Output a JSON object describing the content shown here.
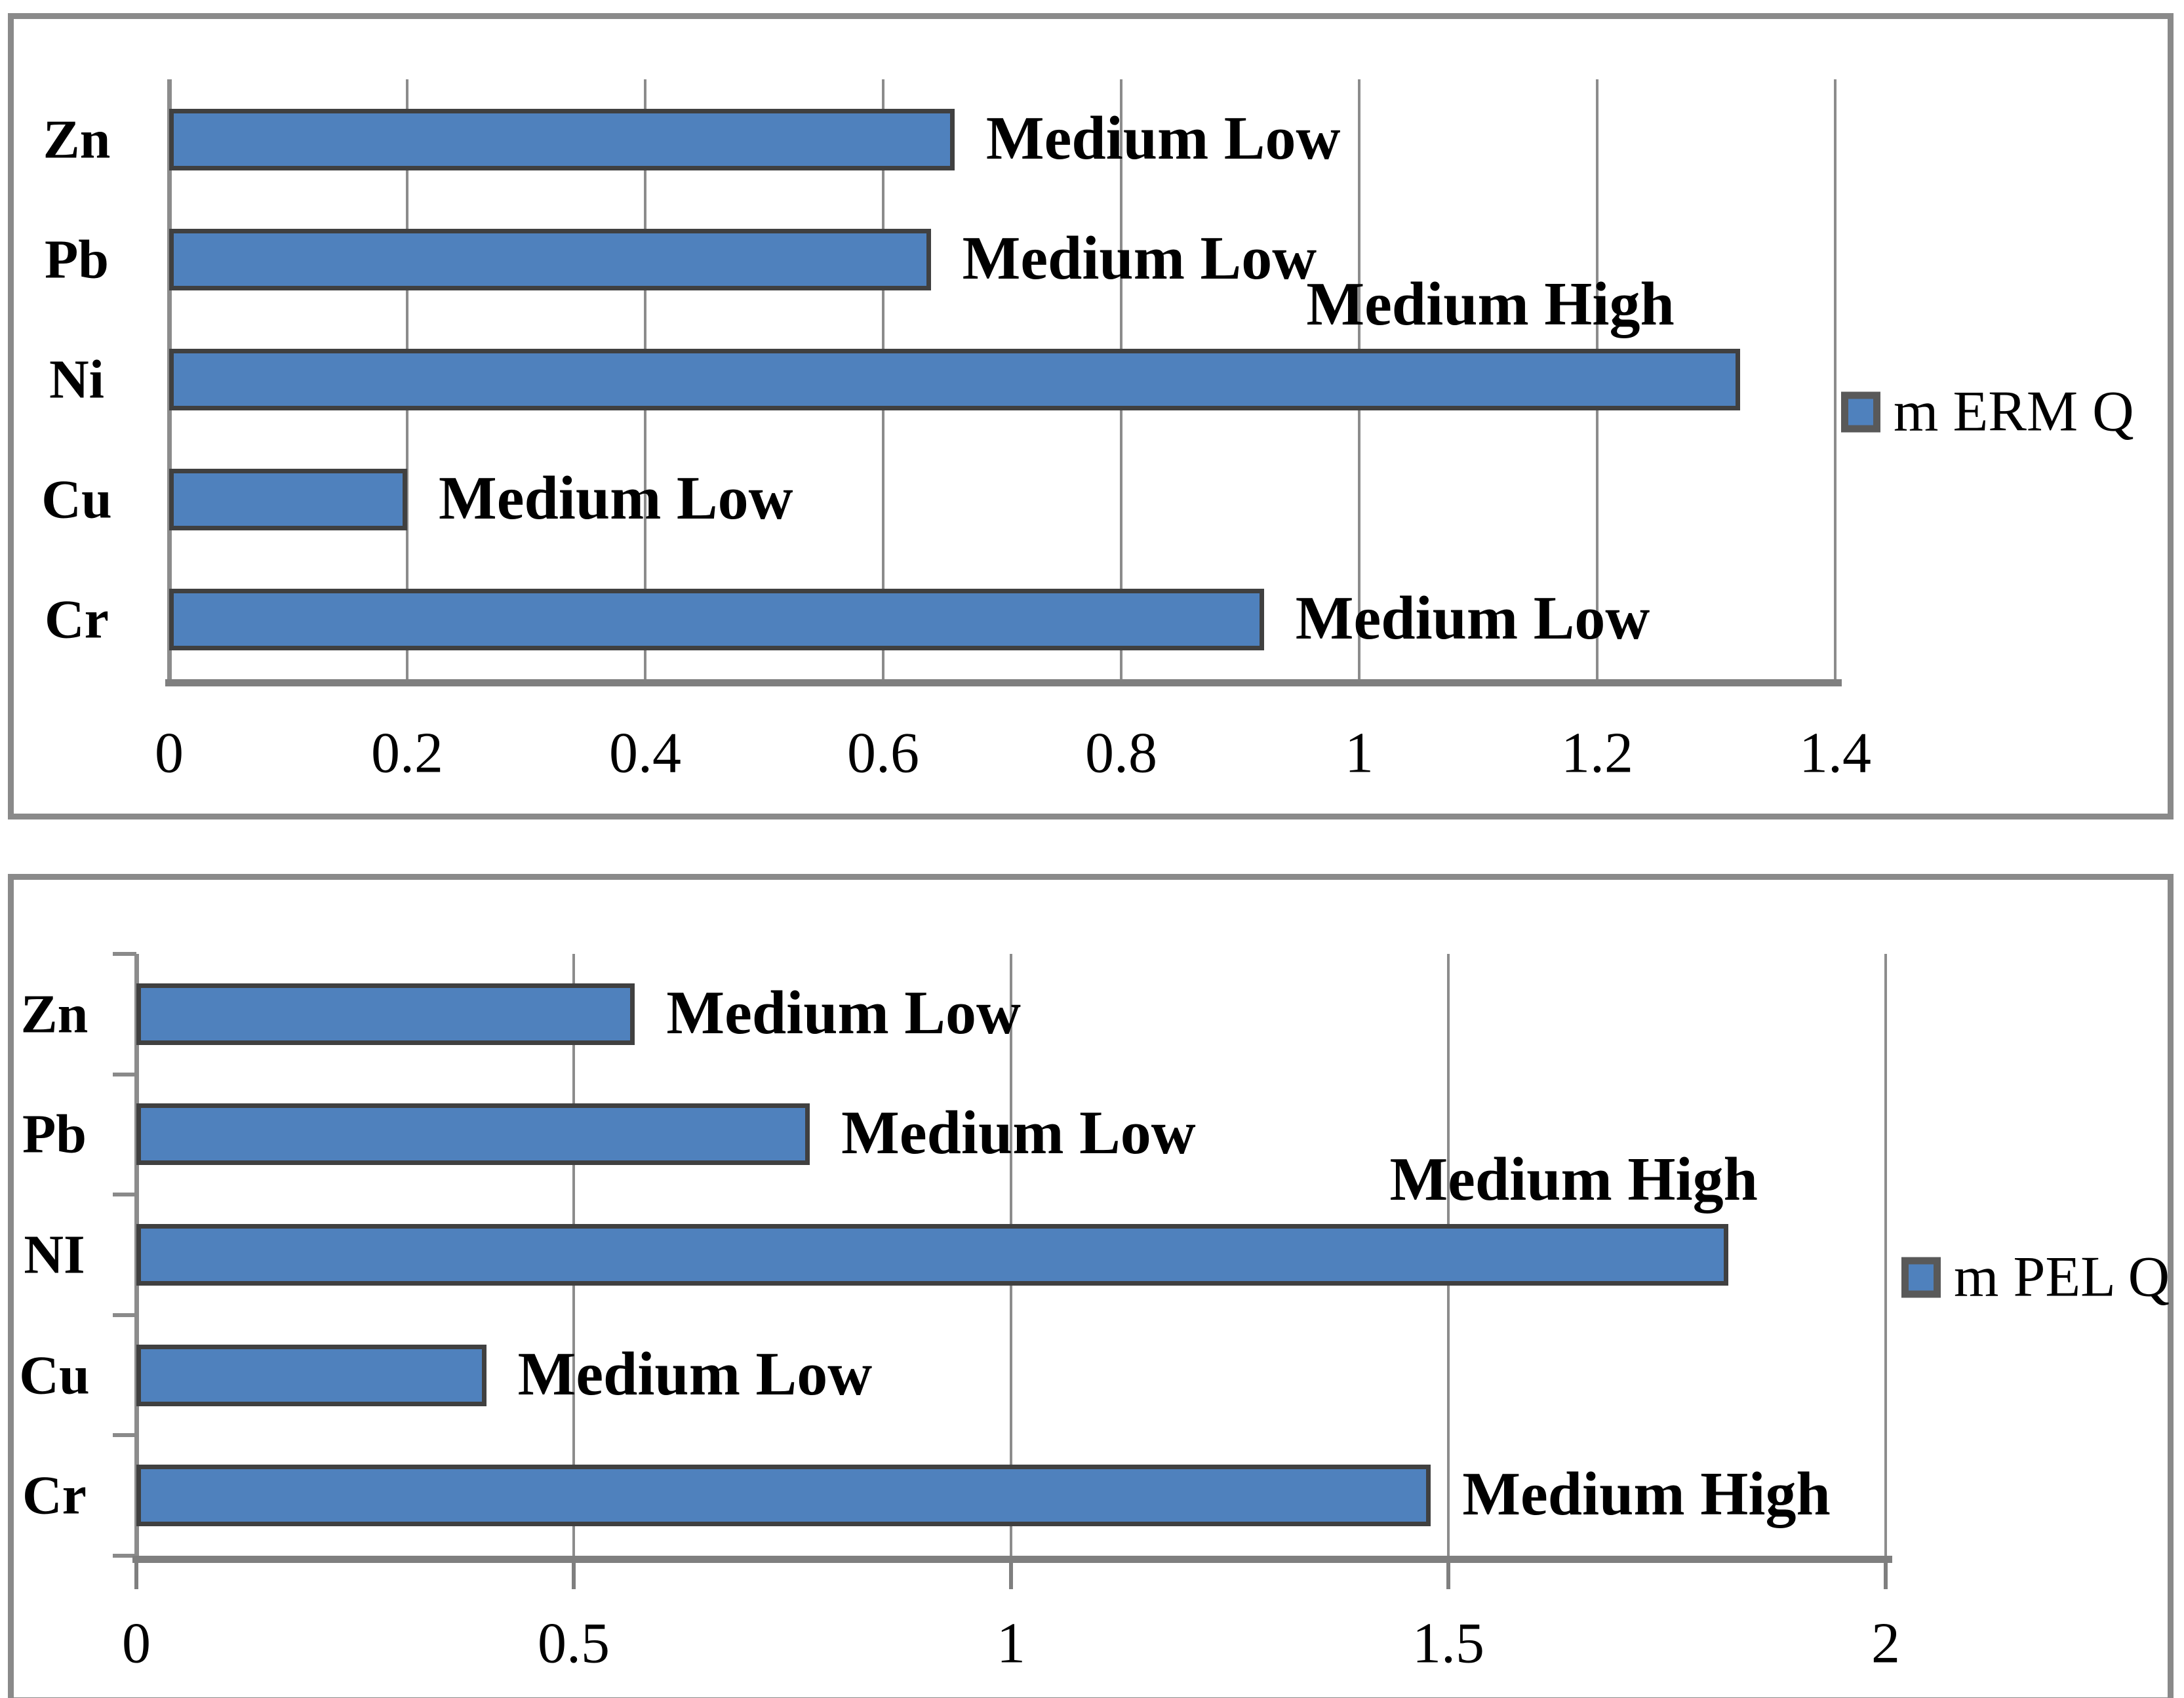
{
  "colors": {
    "background": "#FFFFFF",
    "bar_fill": "#4F81BD",
    "bar_border": "#404040",
    "gridline": "#8C8C8C",
    "axis_line": "#7F7F7F",
    "frame_border": "#8A8A8A",
    "legend_swatch_border": "#595959",
    "text": "#000000"
  },
  "chart_data": [
    {
      "type": "bar",
      "orientation": "horizontal",
      "series_name": "m ERM Q",
      "categories": [
        "Zn",
        "Pb",
        "Ni",
        "Cu",
        "Cr"
      ],
      "values": [
        0.66,
        0.64,
        1.32,
        0.2,
        0.92
      ],
      "data_labels": [
        "Medium Low",
        "Medium Low",
        "Medium High",
        "Medium Low",
        "Medium Low"
      ],
      "data_label_position": [
        "right",
        "right",
        "above",
        "right",
        "right"
      ],
      "xlim": [
        0,
        1.4
      ],
      "xticks": [
        0,
        0.2,
        0.4,
        0.6,
        0.8,
        1,
        1.2,
        1.4
      ],
      "xtick_labels": [
        "0",
        "0.2",
        "0.4",
        "0.6",
        "0.8",
        "1",
        "1.2",
        "1.4"
      ],
      "grid": true,
      "legend_position": "right"
    },
    {
      "type": "bar",
      "orientation": "horizontal",
      "series_name": "m PEL Q",
      "categories": [
        "Zn",
        "Pb",
        "NI",
        "Cu",
        "Cr"
      ],
      "values": [
        0.57,
        0.77,
        1.82,
        0.4,
        1.48
      ],
      "data_labels": [
        "Medium Low",
        "Medium Low",
        "Medium High",
        "Medium Low",
        "Medium High"
      ],
      "data_label_position": [
        "right",
        "right",
        "above",
        "right",
        "right"
      ],
      "xlim": [
        0,
        2
      ],
      "xticks": [
        0,
        0.5,
        1,
        1.5,
        2
      ],
      "xtick_labels": [
        "0",
        "0.5",
        "1",
        "1.5",
        "2"
      ],
      "grid": true,
      "legend_position": "right"
    }
  ]
}
